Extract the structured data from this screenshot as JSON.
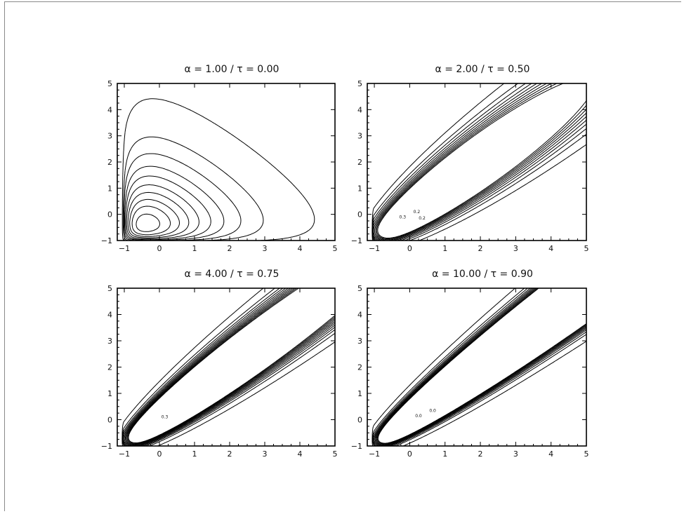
{
  "chart_data": [
    {
      "type": "contour",
      "title": "α  =  1.00   /   τ  =  0.00",
      "xlim": [
        -1.2,
        5
      ],
      "ylim": [
        -1,
        5
      ],
      "xticks": [
        -1,
        0,
        1,
        2,
        3,
        4,
        5
      ],
      "yticks": [
        -1,
        0,
        1,
        2,
        3,
        4,
        5
      ],
      "xtick_labels": [
        "−1",
        "0",
        "1",
        "2",
        "3",
        "4",
        "5"
      ],
      "ytick_labels": [
        "−1",
        "0",
        "1",
        "2",
        "3",
        "4",
        "5"
      ],
      "grid": false,
      "alpha": 1.0,
      "tau": 0.0,
      "mode": [
        -0.55,
        -0.5
      ],
      "levels": [
        0.5,
        1.6,
        2.6,
        3.7,
        4.8,
        6,
        7.2,
        8.4,
        9.6,
        10.9,
        12.2
      ],
      "contour_labels": []
    },
    {
      "type": "contour",
      "title": "α  =  2.00   /   τ  =  0.50",
      "xlim": [
        -1.2,
        5
      ],
      "ylim": [
        -1,
        5
      ],
      "xticks": [
        -1,
        0,
        1,
        2,
        3,
        4,
        5
      ],
      "yticks": [
        -1,
        0,
        1,
        2,
        3,
        4,
        5
      ],
      "xtick_labels": [
        "−1",
        "0",
        "1",
        "2",
        "3",
        "4",
        "5"
      ],
      "ytick_labels": [
        "−1",
        "0",
        "1",
        "2",
        "3",
        "4",
        "5"
      ],
      "grid": false,
      "alpha": 2.0,
      "tau": 0.5,
      "mode": [
        -0.55,
        -0.55
      ],
      "levels": [
        0.5,
        1.4,
        2.2,
        3.0,
        3.8,
        4.6,
        5.4,
        6.2,
        7.0,
        7.8
      ],
      "contour_labels": [
        "0.3",
        "0.2",
        "0.2"
      ]
    },
    {
      "type": "contour",
      "title": "α  =  4.00   /   τ  =  0.75",
      "xlim": [
        -1.2,
        5
      ],
      "ylim": [
        -1,
        5
      ],
      "xticks": [
        -1,
        0,
        1,
        2,
        3,
        4,
        5
      ],
      "yticks": [
        -1,
        0,
        1,
        2,
        3,
        4,
        5
      ],
      "xtick_labels": [
        "−1",
        "0",
        "1",
        "2",
        "3",
        "4",
        "5"
      ],
      "ytick_labels": [
        "−1",
        "0",
        "1",
        "2",
        "3",
        "4",
        "5"
      ],
      "grid": false,
      "alpha": 4.0,
      "tau": 0.75,
      "mode": [
        -0.2,
        -0.35
      ],
      "levels": [
        0.5,
        1.6,
        2.4,
        3.1,
        3.8,
        4.5,
        5.2,
        5.9,
        6.6,
        7.3,
        8.0
      ],
      "contour_labels": [
        "0.3"
      ]
    },
    {
      "type": "contour",
      "title": "α  =  10.00   /   τ  =  0.90",
      "xlim": [
        -1.2,
        5
      ],
      "ylim": [
        -1,
        5
      ],
      "xticks": [
        -1,
        0,
        1,
        2,
        3,
        4,
        5
      ],
      "yticks": [
        -1,
        0,
        1,
        2,
        3,
        4,
        5
      ],
      "xtick_labels": [
        "−1",
        "0",
        "1",
        "2",
        "3",
        "4",
        "5"
      ],
      "ytick_labels": [
        "−1",
        "0",
        "1",
        "2",
        "3",
        "4",
        "5"
      ],
      "grid": false,
      "alpha": 10.0,
      "tau": 0.9,
      "mode": [
        -0.1,
        -0.3
      ],
      "levels": [
        0.5,
        1.7,
        2.5,
        3.3,
        4.0,
        4.7,
        5.4,
        6.1,
        6.8,
        7.5
      ],
      "contour_labels": [
        "0.0",
        "0.0"
      ]
    }
  ]
}
